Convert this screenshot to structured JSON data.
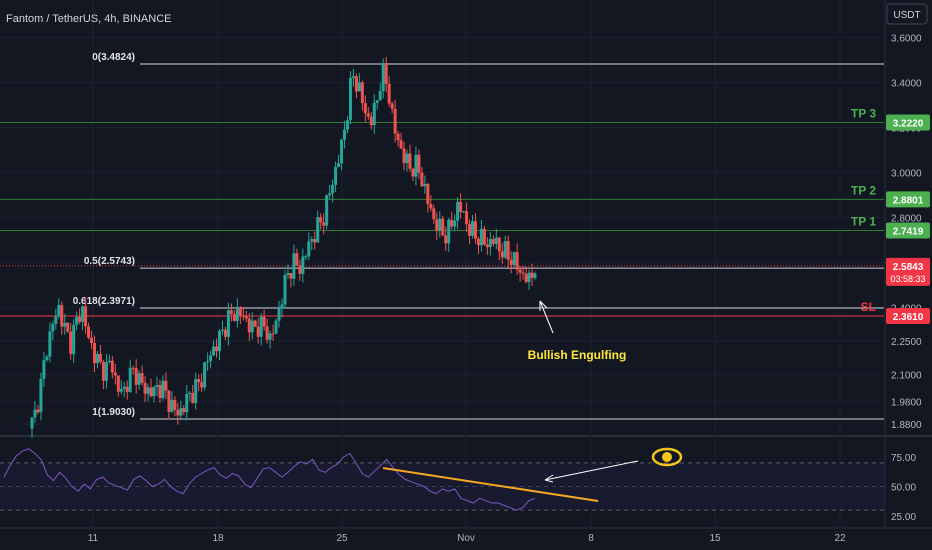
{
  "header": {
    "symbol_title": "Fantom / TetherUS, 4h, BINANCE",
    "currency_badge": "USDT"
  },
  "colors": {
    "background": "#131722",
    "up": "#26a69a",
    "down": "#ef5350",
    "fib_line": "#d1d4dc",
    "tp_line": "#2e7d32",
    "tp_label": "#4caf50",
    "sl": "#f23645",
    "rsi_line": "#7e57c2",
    "rsi_band": "#1e1f3b",
    "trendline": "#f5a623",
    "annotation": "#ffeb3b"
  },
  "chart_data": [
    {
      "type": "candlestick",
      "title": "Fantom / TetherUS, 4h, BINANCE",
      "y_axis_ticks": [
        "3.6000",
        "3.4000",
        "3.2000",
        "3.0000",
        "2.8000",
        "2.6000",
        "2.4000",
        "2.2500",
        "2.1000",
        "1.9800",
        "1.8800"
      ],
      "x_axis_ticks": [
        "11",
        "18",
        "25",
        "Nov",
        "8",
        "15",
        "22"
      ],
      "ylim": [
        1.86,
        3.72
      ],
      "price_path": [
        1.86,
        1.92,
        2.05,
        2.22,
        2.32,
        2.4,
        2.31,
        2.24,
        2.33,
        2.4,
        2.27,
        2.2,
        2.14,
        2.12,
        2.16,
        2.04,
        2.02,
        2.09,
        2.12,
        2.06,
        2.03,
        2.02,
        2.05,
        2.03,
        1.97,
        1.93,
        1.94,
        2.0,
        2.03,
        2.06,
        2.14,
        2.2,
        2.24,
        2.3,
        2.35,
        2.38,
        2.37,
        2.34,
        2.3,
        2.32,
        2.31,
        2.26,
        2.33,
        2.45,
        2.55,
        2.6,
        2.57,
        2.64,
        2.7,
        2.75,
        2.8,
        2.9,
        3.0,
        3.1,
        3.25,
        3.44,
        3.38,
        3.28,
        3.22,
        3.3,
        3.45,
        3.38,
        3.2,
        3.12,
        3.05,
        3.02,
        3.03,
        2.95,
        2.85,
        2.78,
        2.74,
        2.72,
        2.78,
        2.86,
        2.8,
        2.74,
        2.72,
        2.7,
        2.68,
        2.7,
        2.66,
        2.64,
        2.62,
        2.58,
        2.54,
        2.52,
        2.58
      ],
      "fibonacci_levels": [
        {
          "label": "0(3.4824)",
          "price": 3.4824
        },
        {
          "label": "0.5(2.5743)",
          "price": 2.5743
        },
        {
          "label": "0.618(2.3971)",
          "price": 2.3971
        },
        {
          "label": "1(1.9030)",
          "price": 1.903
        }
      ],
      "targets": [
        {
          "label": "TP 3",
          "price": 3.222,
          "price_label": "3.2220"
        },
        {
          "label": "TP 2",
          "price": 2.8801,
          "price_label": "2.8801"
        },
        {
          "label": "TP 1",
          "price": 2.7419,
          "price_label": "2.7419"
        }
      ],
      "stop_loss": {
        "label": "SL",
        "price": 2.361,
        "price_label": "2.3610"
      },
      "current_price": {
        "price": 2.5843,
        "price_label": "2.5843",
        "countdown": "03:58:33"
      },
      "annotations": [
        {
          "text": "Bullish Engulfing"
        }
      ]
    },
    {
      "type": "line",
      "y_axis_ticks": [
        "75.00",
        "50.00",
        "25.00"
      ],
      "ylim": [
        20,
        85
      ],
      "bands": {
        "upper": 70,
        "middle": 50,
        "lower": 30
      },
      "values": [
        58,
        68,
        76,
        80,
        82,
        78,
        73,
        60,
        55,
        62,
        57,
        50,
        46,
        52,
        48,
        56,
        58,
        53,
        51,
        49,
        47,
        56,
        59,
        55,
        50,
        52,
        56,
        50,
        46,
        44,
        52,
        58,
        61,
        64,
        66,
        60,
        57,
        61,
        59,
        52,
        49,
        57,
        65,
        66,
        62,
        58,
        62,
        67,
        71,
        69,
        73,
        64,
        62,
        66,
        69,
        75,
        78,
        70,
        61,
        58,
        63,
        68,
        73,
        66,
        60,
        56,
        54,
        52,
        50,
        46,
        44,
        48,
        46,
        48,
        40,
        38,
        36,
        40,
        38,
        36,
        36,
        34,
        32,
        30,
        32,
        38,
        40
      ]
    }
  ]
}
